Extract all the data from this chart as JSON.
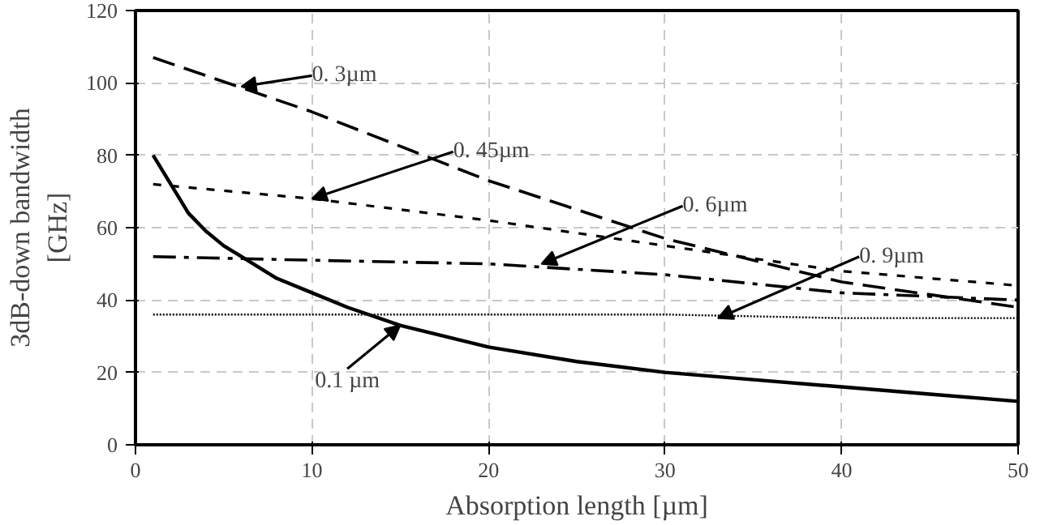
{
  "chart_data": {
    "type": "line",
    "xlabel": "Absorption length [µm]",
    "ylabel": "3dB-down bandwidth\n[GHz]",
    "xlim": [
      0,
      50
    ],
    "ylim": [
      0,
      120
    ],
    "xticks": [
      0,
      10,
      20,
      30,
      40,
      50
    ],
    "yticks": [
      0,
      20,
      40,
      60,
      80,
      100,
      120
    ],
    "grid": true,
    "marker": "none",
    "series": [
      {
        "color": "#000000",
        "line_style": "solid",
        "x": [
          1,
          2,
          3,
          4,
          5,
          6,
          7,
          8,
          10,
          12,
          15,
          20,
          25,
          30,
          35,
          40,
          45,
          50
        ],
        "values": [
          80,
          72,
          64,
          59,
          55,
          52,
          49,
          46,
          42,
          38,
          33,
          27,
          23,
          20,
          18,
          16,
          14,
          12
        ]
      },
      {
        "color": "#000000",
        "line_style": "longdash",
        "x": [
          1,
          10,
          20,
          30,
          40,
          50
        ],
        "values": [
          107,
          92,
          73,
          57,
          45,
          38
        ]
      },
      {
        "color": "#000000",
        "line_style": "dashed",
        "x": [
          1,
          10,
          20,
          30,
          40,
          50
        ],
        "values": [
          72,
          68,
          62,
          55,
          48,
          44
        ]
      },
      {
        "color": "#000000",
        "line_style": "dashdot",
        "x": [
          1,
          10,
          20,
          30,
          40,
          50
        ],
        "values": [
          52,
          51,
          50,
          47,
          42,
          40
        ]
      },
      {
        "color": "#000000",
        "line_style": "dotted",
        "x": [
          1,
          10,
          20,
          30,
          40,
          50
        ],
        "values": [
          36,
          36,
          36,
          36,
          35,
          35
        ]
      }
    ],
    "annotations": [
      {
        "text": "0.1 µm",
        "x": 15,
        "y": 33
      },
      {
        "text": "0. 3µm",
        "x": 6,
        "y": 99
      },
      {
        "text": "0. 45µm",
        "x": 10,
        "y": 68
      },
      {
        "text": "0. 6µm",
        "x": 23,
        "y": 50
      },
      {
        "text": "0. 9µm",
        "x": 33,
        "y": 35
      }
    ]
  }
}
